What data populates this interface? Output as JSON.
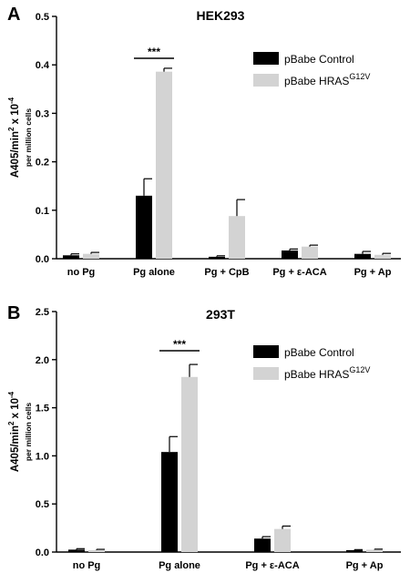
{
  "chart_data": [
    {
      "type": "bar",
      "panel_letter": "A",
      "title": "HEK293",
      "ylabel": "A405/min",
      "ylabel_sup": "2",
      "ylabel_mid": " x 10",
      "ylabel_sup2": "-4",
      "ylabel2": "per million cells",
      "ylim": [
        0,
        0.5
      ],
      "yticks": [
        "0.0",
        "0.1",
        "0.2",
        "0.3",
        "0.4",
        "0.5"
      ],
      "categories": [
        "no Pg",
        "Pg alone",
        "Pg + CpB",
        "Pg + ε-ACA",
        "Pg + Ap"
      ],
      "series": [
        {
          "name": "pBabe Control",
          "name_sup": "",
          "color": "#000000",
          "values": [
            0.007,
            0.13,
            0.004,
            0.017,
            0.01
          ],
          "errors": [
            0.003,
            0.035,
            0.002,
            0.003,
            0.005
          ]
        },
        {
          "name": "pBabe HRAS",
          "name_sup": "G12V",
          "color": "#d3d3d3",
          "values": [
            0.01,
            0.386,
            0.088,
            0.025,
            0.008
          ],
          "errors": [
            0.003,
            0.007,
            0.034,
            0.003,
            0.003
          ]
        }
      ],
      "significance": {
        "label": "***",
        "category_index": 1
      },
      "legend_position": "top-right"
    },
    {
      "type": "bar",
      "panel_letter": "B",
      "title": "293T",
      "ylabel": "A405/min",
      "ylabel_sup": "2",
      "ylabel_mid": " x 10",
      "ylabel_sup2": "-4",
      "ylabel2": "per million cells",
      "ylim": [
        0,
        2.5
      ],
      "yticks": [
        "0.0",
        "0.5",
        "1.0",
        "1.5",
        "2.0",
        "2.5"
      ],
      "categories": [
        "no Pg",
        "Pg alone",
        "Pg + ε-ACA",
        "Pg + Ap"
      ],
      "series": [
        {
          "name": "pBabe Control",
          "name_sup": "",
          "color": "#000000",
          "values": [
            0.025,
            1.04,
            0.14,
            0.02
          ],
          "errors": [
            0.01,
            0.16,
            0.02,
            0.005
          ]
        },
        {
          "name": "pBabe HRAS",
          "name_sup": "G12V",
          "color": "#d3d3d3",
          "values": [
            0.02,
            1.82,
            0.24,
            0.025
          ],
          "errors": [
            0.008,
            0.13,
            0.03,
            0.005
          ]
        }
      ],
      "significance": {
        "label": "***",
        "category_index": 1
      },
      "legend_position": "top-right"
    }
  ]
}
